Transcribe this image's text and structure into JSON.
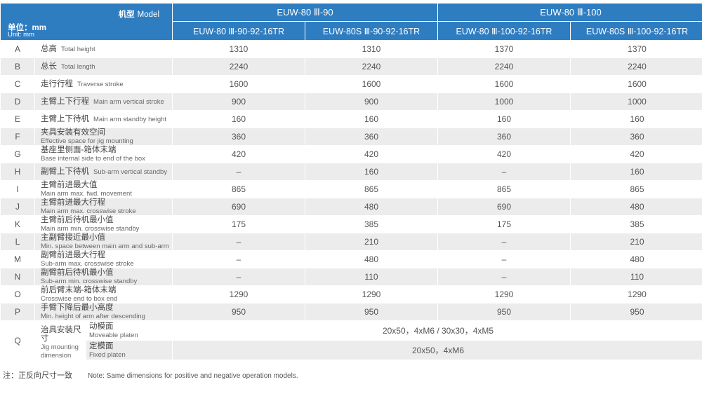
{
  "header": {
    "model_cn": "机型",
    "model_en": "Model",
    "unit_cn": "单位：mm",
    "unit_en": "Unit: mm",
    "groups": [
      "EUW-80 Ⅲ-90",
      "EUW-80 Ⅲ-100"
    ],
    "models": [
      "EUW-80 Ⅲ-90-92-16TR",
      "EUW-80S Ⅲ-90-92-16TR",
      "EUW-80 Ⅲ-100-92-16TR",
      "EUW-80S Ⅲ-100-92-16TR"
    ]
  },
  "rows": [
    {
      "letter": "A",
      "cn": "总高",
      "en": "Total height",
      "values": [
        "1310",
        "1310",
        "1370",
        "1370"
      ]
    },
    {
      "letter": "B",
      "cn": "总长",
      "en": "Total length",
      "values": [
        "2240",
        "2240",
        "2240",
        "2240"
      ]
    },
    {
      "letter": "C",
      "cn": "走行行程",
      "en": "Traverse stroke",
      "values": [
        "1600",
        "1600",
        "1600",
        "1600"
      ]
    },
    {
      "letter": "D",
      "cn": "主臂上下行程",
      "en": "Main arm vertical stroke",
      "values": [
        "900",
        "900",
        "1000",
        "1000"
      ]
    },
    {
      "letter": "E",
      "cn": "主臂上下待机",
      "en": "Main arm standby height",
      "values": [
        "160",
        "160",
        "160",
        "160"
      ]
    },
    {
      "letter": "F",
      "cn": "夹具安装有效空间",
      "en": "Effective space for jig mounting",
      "values": [
        "360",
        "360",
        "360",
        "360"
      ]
    },
    {
      "letter": "G",
      "cn": "基座里侧面-箱体末端",
      "en": "Base internal side to end of the box",
      "values": [
        "420",
        "420",
        "420",
        "420"
      ]
    },
    {
      "letter": "H",
      "cn": "副臂上下待机",
      "en": "Sub-arm vertical standby",
      "values": [
        "–",
        "160",
        "–",
        "160"
      ]
    },
    {
      "letter": "I",
      "cn": "主臂前进最大值",
      "en": "Main arm max. fwd. movement",
      "values": [
        "865",
        "865",
        "865",
        "865"
      ]
    },
    {
      "letter": "J",
      "cn": "主臂前进最大行程",
      "en": "Main arm max. crosswise stroke",
      "values": [
        "690",
        "480",
        "690",
        "480"
      ]
    },
    {
      "letter": "K",
      "cn": "主臂前后待机最小值",
      "en": "Main arm min. crosswise standby",
      "values": [
        "175",
        "385",
        "175",
        "385"
      ]
    },
    {
      "letter": "L",
      "cn": "主副臂接近最小值",
      "en": "Min. space between main arm and sub-arm",
      "values": [
        "–",
        "210",
        "–",
        "210"
      ]
    },
    {
      "letter": "M",
      "cn": "副臂前进最大行程",
      "en": "Sub-arm max. crosswise stroke",
      "values": [
        "–",
        "480",
        "–",
        "480"
      ]
    },
    {
      "letter": "N",
      "cn": "副臂前后待机最小值",
      "en": "Sub-arm min. crosswise standby",
      "values": [
        "–",
        "110",
        "–",
        "110"
      ]
    },
    {
      "letter": "O",
      "cn": "前后臂末端-箱体末端",
      "en": "Crosswise end to box end",
      "values": [
        "1290",
        "1290",
        "1290",
        "1290"
      ]
    },
    {
      "letter": "P",
      "cn": "手臂下降后最小高度",
      "en": "Min. height of arm after descending",
      "values": [
        "950",
        "950",
        "950",
        "950"
      ]
    }
  ],
  "jig": {
    "letter": "Q",
    "cn": "治具安装尺寸",
    "en": "Jig mounting dimension",
    "moveable_cn": "动模面",
    "moveable_en": "Moveable platen",
    "moveable_value": "20x50，4xM6 / 30x30，4xM5",
    "fixed_cn": "定模面",
    "fixed_en": "Fixed platen",
    "fixed_value": "20x50，4xM6"
  },
  "note": {
    "cn": "注：正反向尺寸一致",
    "en": "Note: Same dimensions for positive and negative operation models."
  }
}
